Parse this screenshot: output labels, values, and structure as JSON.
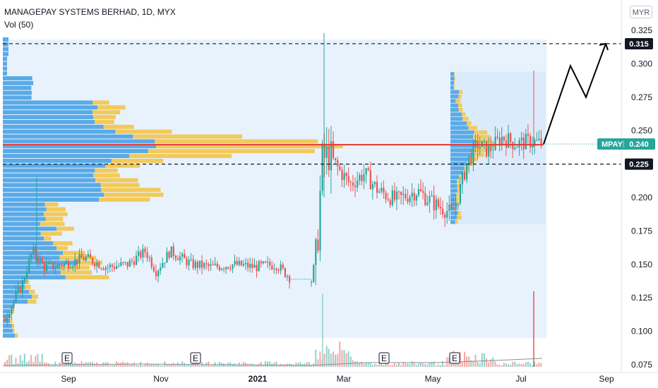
{
  "header": {
    "title": "MANAGEPAY SYSTEMS BERHAD, 1D, MYX",
    "volume": "Vol (50)",
    "currency": "MYR"
  },
  "chart_data": {
    "type": "candlestick",
    "symbol": "MPAY",
    "last_price": 0.24,
    "y_ticks": [
      "0.325",
      "0.300",
      "0.275",
      "0.250",
      "0.225",
      "0.200",
      "0.175",
      "0.150",
      "0.125",
      "0.100",
      "0.075"
    ],
    "x_ticks": [
      "Sep",
      "Nov",
      "2021",
      "Mar",
      "May",
      "Jul",
      "Sep"
    ],
    "ylim": [
      0.0735,
      0.327
    ],
    "levels": [
      {
        "label": "0.315",
        "value": 0.315,
        "style": "dashed"
      },
      {
        "label": "0.225",
        "value": 0.225,
        "style": "dashed"
      }
    ],
    "current_line": {
      "value": 0.2395,
      "color": "#e53935"
    },
    "price_tag": {
      "symbol": "MPAY",
      "value": "0.240",
      "color": "#26a69a"
    },
    "earnings_markers": [
      "E",
      "E",
      "E",
      "E"
    ],
    "projection_path": [
      [
        0.24,
        "2021-07-20"
      ],
      [
        0.2985,
        "2021-08-03"
      ],
      [
        0.275,
        "2021-08-13"
      ],
      [
        0.315,
        "2021-08-25"
      ]
    ],
    "colors": {
      "up": "#26a69a",
      "down": "#ef5350",
      "profile_up": "#5aaae8",
      "profile_down": "#f2ca5c",
      "profile_bg": "#e8f2fd"
    }
  }
}
